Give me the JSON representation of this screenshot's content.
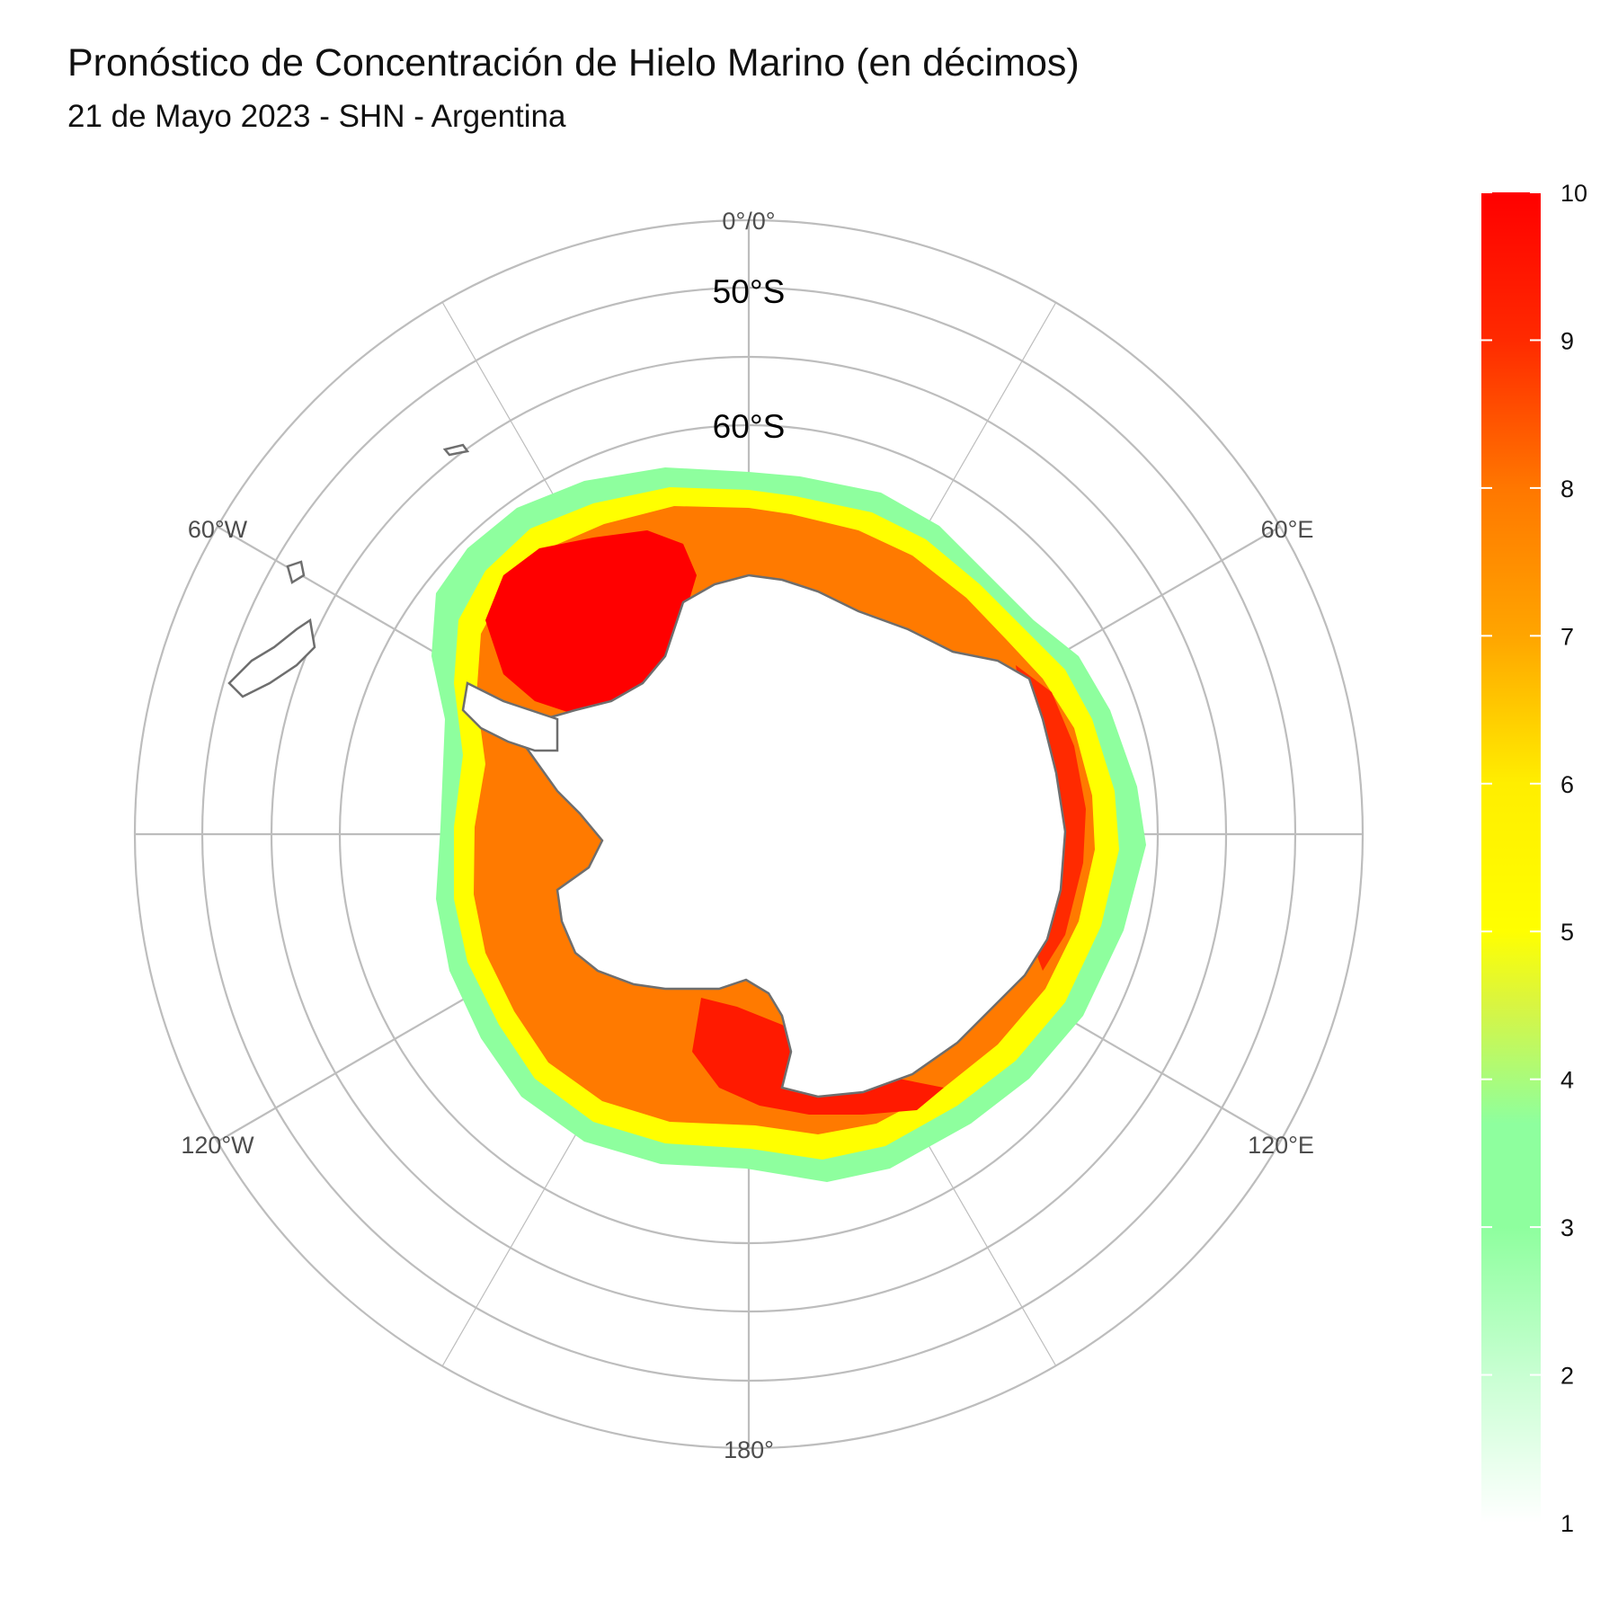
{
  "title": "Pronóstico de Concentración de Hielo Marino (en décimos)",
  "subtitle": "21 de Mayo 2023 - SHN - Argentina",
  "map": {
    "projection": "south-polar-stereographic",
    "meridian_labels": [
      {
        "lon": 0,
        "label": "0°/0°"
      },
      {
        "lon": 60,
        "label": "60°E"
      },
      {
        "lon": 120,
        "label": "120°E"
      },
      {
        "lon": 180,
        "label": "180°"
      },
      {
        "lon": -120,
        "label": "120°W"
      },
      {
        "lon": -60,
        "label": "60°W"
      }
    ],
    "parallel_labels": [
      {
        "lat": -50,
        "label": "50°S"
      },
      {
        "lat": -60,
        "label": "60°S"
      }
    ],
    "grid": true,
    "land_fill": "#ffffff",
    "coastline_color": "#6e6e6e"
  },
  "legend": {
    "placement": "right",
    "min": 1,
    "max": 10,
    "ticks": [
      "1",
      "2",
      "3",
      "4",
      "5",
      "6",
      "7",
      "8",
      "9",
      "10"
    ],
    "colors": [
      {
        "value": 1,
        "color": "#ffffff"
      },
      {
        "value": 2,
        "color": "#c8ffd2"
      },
      {
        "value": 3,
        "color": "#8eff9e"
      },
      {
        "value": 3.7,
        "color": "#8eff9e"
      },
      {
        "value": 4.5,
        "color": "#d8f542"
      },
      {
        "value": 5,
        "color": "#ffff00"
      },
      {
        "value": 6,
        "color": "#ffee00"
      },
      {
        "value": 7,
        "color": "#ffa500"
      },
      {
        "value": 8,
        "color": "#ff7700"
      },
      {
        "value": 9,
        "color": "#ff2a00"
      },
      {
        "value": 10,
        "color": "#ff0000"
      }
    ]
  }
}
